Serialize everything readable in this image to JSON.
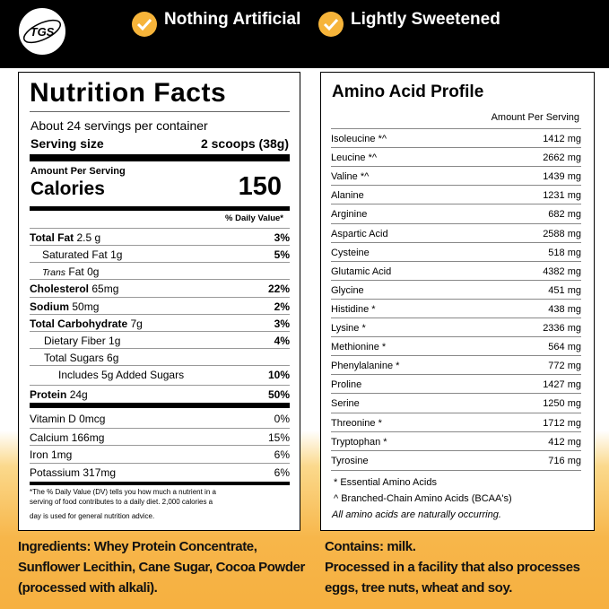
{
  "header": {
    "logo": "TGS",
    "badges": [
      "Nothing Artificial",
      "Lightly Sweetened"
    ]
  },
  "nutrition": {
    "title": "Nutrition Facts",
    "servings": "About 24 servings per container",
    "serving_size_label": "Serving size",
    "serving_size_value": "2 scoops (38g)",
    "amount_per_serving": "Amount Per Serving",
    "calories_label": "Calories",
    "calories_value": "150",
    "daily_value_header": "% Daily Value*",
    "rows": [
      [
        "Total Fat",
        "2.5 g",
        "3%"
      ],
      [
        "Saturated Fat",
        "1g",
        "5%"
      ],
      [
        "Trans",
        "Fat 0g",
        ""
      ],
      [
        "Cholesterol",
        "65mg",
        "22%"
      ],
      [
        "Sodium",
        "50mg",
        "2%"
      ],
      [
        "Total Carbohydrate",
        "7g",
        "3%"
      ],
      [
        "Dietary Fiber",
        "1g",
        "4%"
      ],
      [
        "Total Sugars",
        "6g",
        ""
      ],
      [
        "Includes 5g Added Sugars",
        "",
        "10%"
      ],
      [
        "Protein",
        "24g",
        "50%"
      ]
    ],
    "vitamins": [
      [
        "Vitamin D 0mcg",
        "0%"
      ],
      [
        "Calcium 166mg",
        "15%"
      ],
      [
        "Iron 1mg",
        "6%"
      ],
      [
        "Potassium 317mg",
        "6%"
      ]
    ],
    "footnote": [
      "*The % Daily Value (DV) tells you how much a nutrient in a",
      "serving of food contributes to a daily diet. 2,000 calories a",
      "day is used for general nutrition advice."
    ]
  },
  "amino": {
    "title": "Amino Acid Profile",
    "header": "Amount Per Serving",
    "rows": [
      [
        "Isoleucine *^",
        "1412 mg"
      ],
      [
        "Leucine *^",
        "2662 mg"
      ],
      [
        "Valine *^",
        "1439 mg"
      ],
      [
        "Alanine",
        "1231 mg"
      ],
      [
        "Arginine",
        "682 mg"
      ],
      [
        "Aspartic Acid",
        "2588 mg"
      ],
      [
        "Cysteine",
        "518 mg"
      ],
      [
        "Glutamic Acid",
        "4382 mg"
      ],
      [
        "Glycine",
        "451 mg"
      ],
      [
        "Histidine *",
        "438 mg"
      ],
      [
        "Lysine *",
        "2336 mg"
      ],
      [
        "Methionine *",
        "564 mg"
      ],
      [
        "Phenylalanine *",
        "772 mg"
      ],
      [
        "Proline",
        "1427 mg"
      ],
      [
        "Serine",
        "1250 mg"
      ],
      [
        "Threonine *",
        "1712 mg"
      ],
      [
        "Tryptophan *",
        "412 mg"
      ],
      [
        "Tyrosine",
        "716 mg"
      ]
    ],
    "notes": [
      "* Essential Amino Acids",
      "^ Branched-Chain Amino Acids (BCAA's)",
      "All amino acids are naturally occurring."
    ]
  },
  "ingredients": [
    "Ingredients: Whey Protein Concentrate,",
    "Sunflower Lecithin, Cane Sugar, Cocoa Powder",
    "(processed with alkali)."
  ],
  "allergens": [
    "Contains: milk.",
    "Processed in a facility that also processes",
    "eggs, tree nuts, wheat and soy."
  ]
}
